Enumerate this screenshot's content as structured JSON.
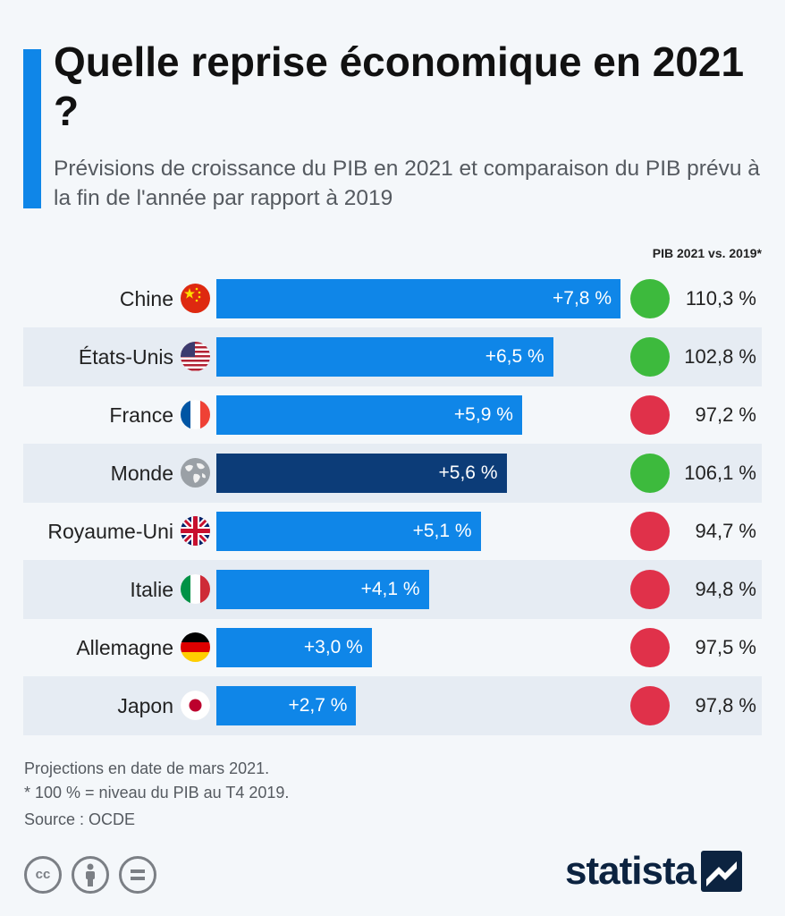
{
  "header": {
    "title": "Quelle reprise économique en 2021 ?",
    "subtitle": "Prévisions de croissance du PIB en 2021 et comparaison du PIB prévu à la fin de l'année par rapport à 2019"
  },
  "chart_data": {
    "type": "bar",
    "orientation": "horizontal",
    "title": "Quelle reprise économique en 2021 ?",
    "subtitle": "Prévisions de croissance du PIB en 2021 et comparaison du PIB prévu à la fin de l'année par rapport à 2019",
    "column_header": "PIB 2021 vs. 2019*",
    "categories": [
      "Chine",
      "États-Unis",
      "France",
      "Monde",
      "Royaume-Uni",
      "Italie",
      "Allemagne",
      "Japon"
    ],
    "values": [
      7.8,
      6.5,
      5.9,
      5.6,
      5.1,
      4.1,
      3.0,
      2.7
    ],
    "value_labels": [
      "+7,8 %",
      "+6,5 %",
      "+5,9 %",
      "+5,6 %",
      "+5,1 %",
      "+4,1 %",
      "+3,0 %",
      "+2,7 %"
    ],
    "pib_vs_2019": [
      110.3,
      102.8,
      97.2,
      106.1,
      94.7,
      94.8,
      97.5,
      97.8
    ],
    "pib_labels": [
      "110,3 %",
      "102,8 %",
      "97,2 %",
      "106,1 %",
      "94,7 %",
      "94,8 %",
      "97,5 %",
      "97,8 %"
    ],
    "status": [
      "above",
      "above",
      "below",
      "above",
      "below",
      "below",
      "below",
      "below"
    ],
    "flags": [
      "china-flag-icon",
      "usa-flag-icon",
      "france-flag-icon",
      "globe-icon",
      "uk-flag-icon",
      "italy-flag-icon",
      "germany-flag-icon",
      "japan-flag-icon"
    ],
    "highlight": "Monde",
    "xlim": [
      0,
      7.8
    ]
  },
  "colors": {
    "bar": "#0f86e8",
    "bar_highlight": "#0c3c78",
    "above": "#3dba3d",
    "below": "#e0314a",
    "accent": "#0f86e8"
  },
  "footer": {
    "note1": "Projections en date de mars 2021.",
    "note2": "* 100 % = niveau du PIB au T4 2019.",
    "source": "Source : OCDE",
    "logo": "statista",
    "license_icons": [
      "cc-icon",
      "by-icon",
      "nd-icon"
    ]
  }
}
